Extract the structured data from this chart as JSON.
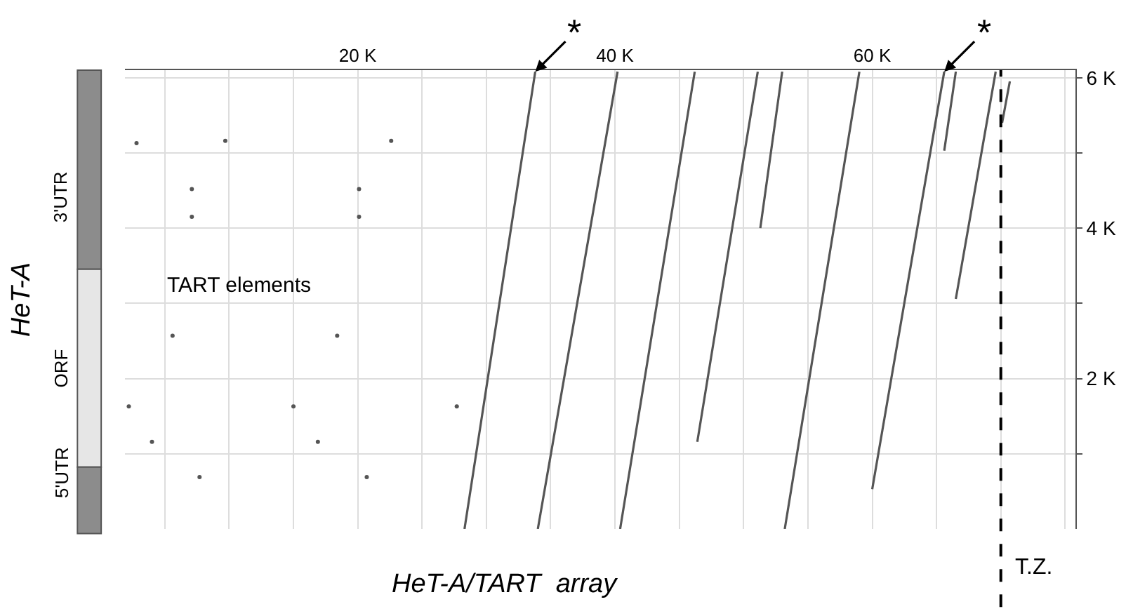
{
  "chart_data": {
    "type": "line",
    "xlabel": "HeT-A/TART  array",
    "ylabel": "HeT-A",
    "xlim": [
      1.9,
      75.8
    ],
    "ylim": [
      0,
      6.1
    ],
    "xticks": [
      {
        "value": 5,
        "label": null
      },
      {
        "value": 10,
        "label": null
      },
      {
        "value": 15,
        "label": null
      },
      {
        "value": 20,
        "label": "20 K"
      },
      {
        "value": 25,
        "label": null
      },
      {
        "value": 30,
        "label": null
      },
      {
        "value": 35,
        "label": null
      },
      {
        "value": 40,
        "label": "40 K"
      },
      {
        "value": 45,
        "label": null
      },
      {
        "value": 50,
        "label": null
      },
      {
        "value": 55,
        "label": null
      },
      {
        "value": 60,
        "label": "60 K"
      },
      {
        "value": 65,
        "label": null
      },
      {
        "value": 70,
        "label": null
      },
      {
        "value": 75,
        "label": null
      }
    ],
    "yticks": [
      {
        "value": 1,
        "label": null
      },
      {
        "value": 2,
        "label": "2 K"
      },
      {
        "value": 3,
        "label": null
      },
      {
        "value": 4,
        "label": "4 K"
      },
      {
        "value": 5,
        "label": null
      },
      {
        "value": 6,
        "label": "6 K"
      }
    ],
    "grid": true,
    "marker": "none",
    "line_style": "solid",
    "series": [
      {
        "color": "#555555",
        "x": [
          28.3,
          33.8
        ],
        "values": [
          0,
          6.08
        ]
      },
      {
        "color": "#555555",
        "x": [
          34.0,
          40.2
        ],
        "values": [
          0,
          6.08
        ]
      },
      {
        "color": "#555555",
        "x": [
          40.4,
          46.2
        ],
        "values": [
          0,
          6.08
        ]
      },
      {
        "color": "#555555",
        "x": [
          46.4,
          51.1
        ],
        "values": [
          1.16,
          6.08
        ]
      },
      {
        "color": "#555555",
        "x": [
          51.3,
          53.0
        ],
        "values": [
          4.0,
          6.08
        ]
      },
      {
        "color": "#555555",
        "x": [
          53.2,
          59.0
        ],
        "values": [
          0,
          6.08
        ]
      },
      {
        "color": "#555555",
        "x": [
          60.0,
          65.6
        ],
        "values": [
          0.53,
          6.08
        ]
      },
      {
        "color": "#555555",
        "x": [
          65.6,
          66.5
        ],
        "values": [
          5.03,
          6.08
        ]
      },
      {
        "color": "#555555",
        "x": [
          66.5,
          69.6
        ],
        "values": [
          3.06,
          6.08
        ]
      },
      {
        "color": "#555555",
        "x": [
          70.1,
          70.7
        ],
        "values": [
          5.4,
          5.95
        ]
      },
      {
        "type": "scatter",
        "color": "#555555",
        "x": [
          2.8,
          9.7,
          22.6,
          7.1,
          7.1,
          20.1,
          20.1,
          5.6,
          18.4,
          2.2,
          15.0,
          27.7,
          4.0,
          16.9,
          7.7,
          20.7
        ],
        "values": [
          5.13,
          5.16,
          5.16,
          4.52,
          4.15,
          4.52,
          4.15,
          2.57,
          2.57,
          1.63,
          1.63,
          1.63,
          1.16,
          1.16,
          0.69,
          0.69
        ]
      }
    ],
    "ref_lines": [
      {
        "axis": "x",
        "value": 70.0,
        "label": "T.Z.",
        "color": "#000000",
        "line_style": "dashed"
      }
    ],
    "annotations": [
      "TART elements",
      "3'UTR",
      "ORF",
      "5'UTR",
      {
        "text": "*",
        "x": 33.8,
        "y": 6.08
      },
      {
        "text": "*",
        "x": 65.6,
        "y": 6.08
      }
    ]
  }
}
